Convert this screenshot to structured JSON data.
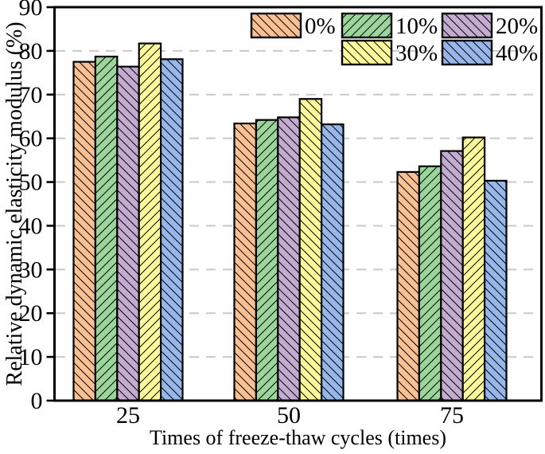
{
  "chart_data": {
    "type": "bar",
    "title": "",
    "xlabel": "Times of freeze-thaw cycles (times)",
    "ylabel": "Relative dynamic elasticity modulus (%)",
    "categories": [
      "25",
      "50",
      "75"
    ],
    "series": [
      {
        "name": "0%",
        "color": "#F8C093",
        "hatch": [
          "b",
          "b",
          "b"
        ],
        "values": [
          77.5,
          63.4,
          52.3
        ]
      },
      {
        "name": "10%",
        "color": "#9CD59C",
        "hatch": [
          "f",
          "f",
          "f"
        ],
        "values": [
          78.7,
          64.2,
          53.6
        ]
      },
      {
        "name": "20%",
        "color": "#C3ACD0",
        "hatch": [
          "b",
          "b",
          "b"
        ],
        "values": [
          76.4,
          64.8,
          57.1
        ]
      },
      {
        "name": "30%",
        "color": "#FCFA9B",
        "hatch": [
          "f",
          "b",
          "f"
        ],
        "values": [
          81.7,
          69.0,
          60.2
        ]
      },
      {
        "name": "40%",
        "color": "#97B7EA",
        "hatch": [
          "b",
          "b",
          "b"
        ],
        "values": [
          78.1,
          63.2,
          50.3
        ]
      }
    ],
    "legend": {
      "position": "top-right-inside",
      "items": [
        {
          "label": "0%",
          "hatch": "b"
        },
        {
          "label": "10%",
          "hatch": "f"
        },
        {
          "label": "20%",
          "hatch": "b"
        },
        {
          "label": "30%",
          "hatch": "b"
        },
        {
          "label": "40%",
          "hatch": "b"
        }
      ],
      "rows": [
        [
          0,
          1,
          2
        ],
        [
          3,
          4
        ]
      ]
    },
    "ylim": [
      0,
      90
    ],
    "ytick_step": 10,
    "yticks": [
      "0",
      "10",
      "20",
      "30",
      "40",
      "50",
      "60",
      "70",
      "80",
      "90"
    ],
    "grid": {
      "show": true,
      "color": "#c9c9c9",
      "dashed": true
    },
    "axis_color": "#000000",
    "hatch_color": "#000000",
    "bar_edge_color": "#000000"
  }
}
